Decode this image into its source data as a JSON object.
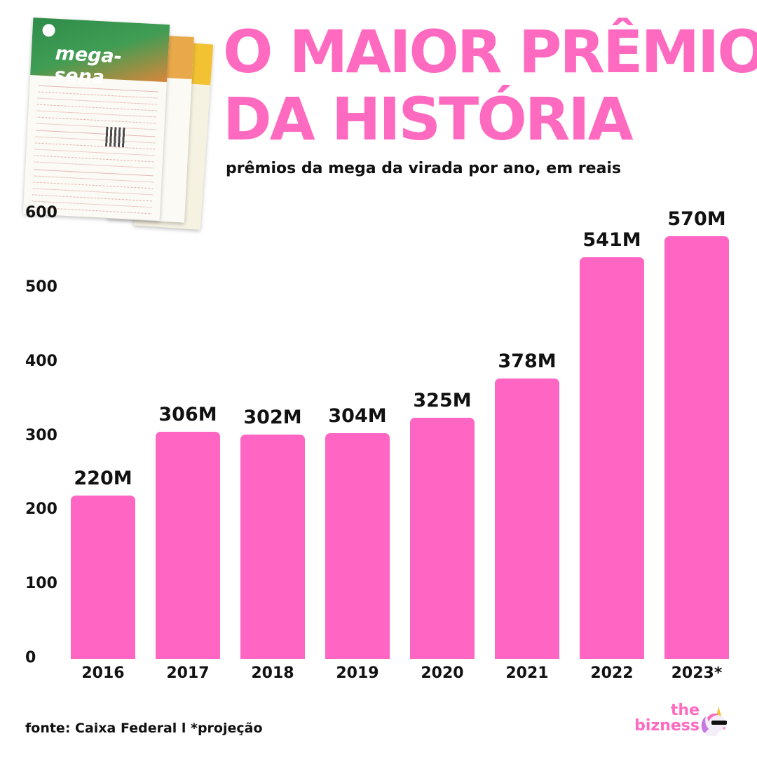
{
  "header": {
    "title_line1": "O MAIOR PRÊMIO",
    "title_line2": "DA HISTÓRIA",
    "subtitle": "prêmios da mega da virada por ano, em reais"
  },
  "illustration": {
    "ticket_logo": "mega-sena",
    "icon": "lottery-ticket-icon"
  },
  "chart_data": {
    "type": "bar",
    "title": "O MAIOR PRÊMIO DA HISTÓRIA",
    "subtitle": "prêmios da mega da virada por ano, em reais",
    "categories": [
      "2016",
      "2017",
      "2018",
      "2019",
      "2020",
      "2021",
      "2022",
      "2023*"
    ],
    "values": [
      220,
      306,
      302,
      304,
      325,
      378,
      541,
      570
    ],
    "value_labels": [
      "220M",
      "306M",
      "302M",
      "304M",
      "325M",
      "378M",
      "541M",
      "570M"
    ],
    "yticks": [
      "0",
      "100",
      "200",
      "300",
      "400",
      "500",
      "600"
    ],
    "ylim": [
      0,
      600
    ],
    "xlabel": "",
    "ylabel": "",
    "grid": false,
    "bar_color": "#ff66c4"
  },
  "footer": {
    "source": "fonte: Caixa Federal  l *projeção",
    "brand_line1": "the",
    "brand_line2": "bizness",
    "brand_color": "#ff6ac1",
    "brand_icon": "unicorn-icon"
  }
}
